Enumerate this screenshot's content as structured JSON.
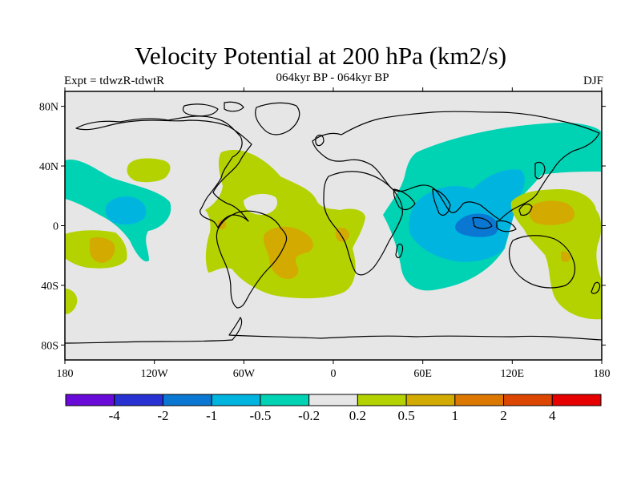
{
  "title": "Velocity Potential at 200 hPa (km2/s)",
  "subtitle_left": "Expt = tdwzR-tdwtR",
  "subtitle_center": "064kyr BP - 064kyr BP",
  "subtitle_right": "DJF",
  "lat_ticks": [
    {
      "value": 80,
      "label": "80N"
    },
    {
      "value": 40,
      "label": "40N"
    },
    {
      "value": 0,
      "label": "0"
    },
    {
      "value": -40,
      "label": "40S"
    },
    {
      "value": -80,
      "label": "80S"
    }
  ],
  "lon_ticks": [
    {
      "value": -180,
      "label": "180"
    },
    {
      "value": -120,
      "label": "120W"
    },
    {
      "value": -60,
      "label": "60W"
    },
    {
      "value": 0,
      "label": "0"
    },
    {
      "value": 60,
      "label": "60E"
    },
    {
      "value": 120,
      "label": "120E"
    },
    {
      "value": 180,
      "label": "180"
    }
  ],
  "colorbar": {
    "colors": [
      "#6a0ad8",
      "#2832d2",
      "#0a78d2",
      "#00b4e0",
      "#00d2b4",
      "#e6e6e6",
      "#b4d200",
      "#d2aa00",
      "#dc7800",
      "#dc4600",
      "#e60000"
    ],
    "labels": [
      "-4",
      "-2",
      "-1",
      "-0.5",
      "-0.2",
      "0.2",
      "0.5",
      "1",
      "2",
      "4"
    ]
  },
  "colors": {
    "background": "#e6e6e6",
    "weak_negative": "#00d2b4",
    "moderate_negative": "#00b4e0",
    "strong_negative": "#0a78d2",
    "weak_positive": "#b4d200",
    "moderate_positive": "#d2aa00",
    "coast": "#000000"
  }
}
